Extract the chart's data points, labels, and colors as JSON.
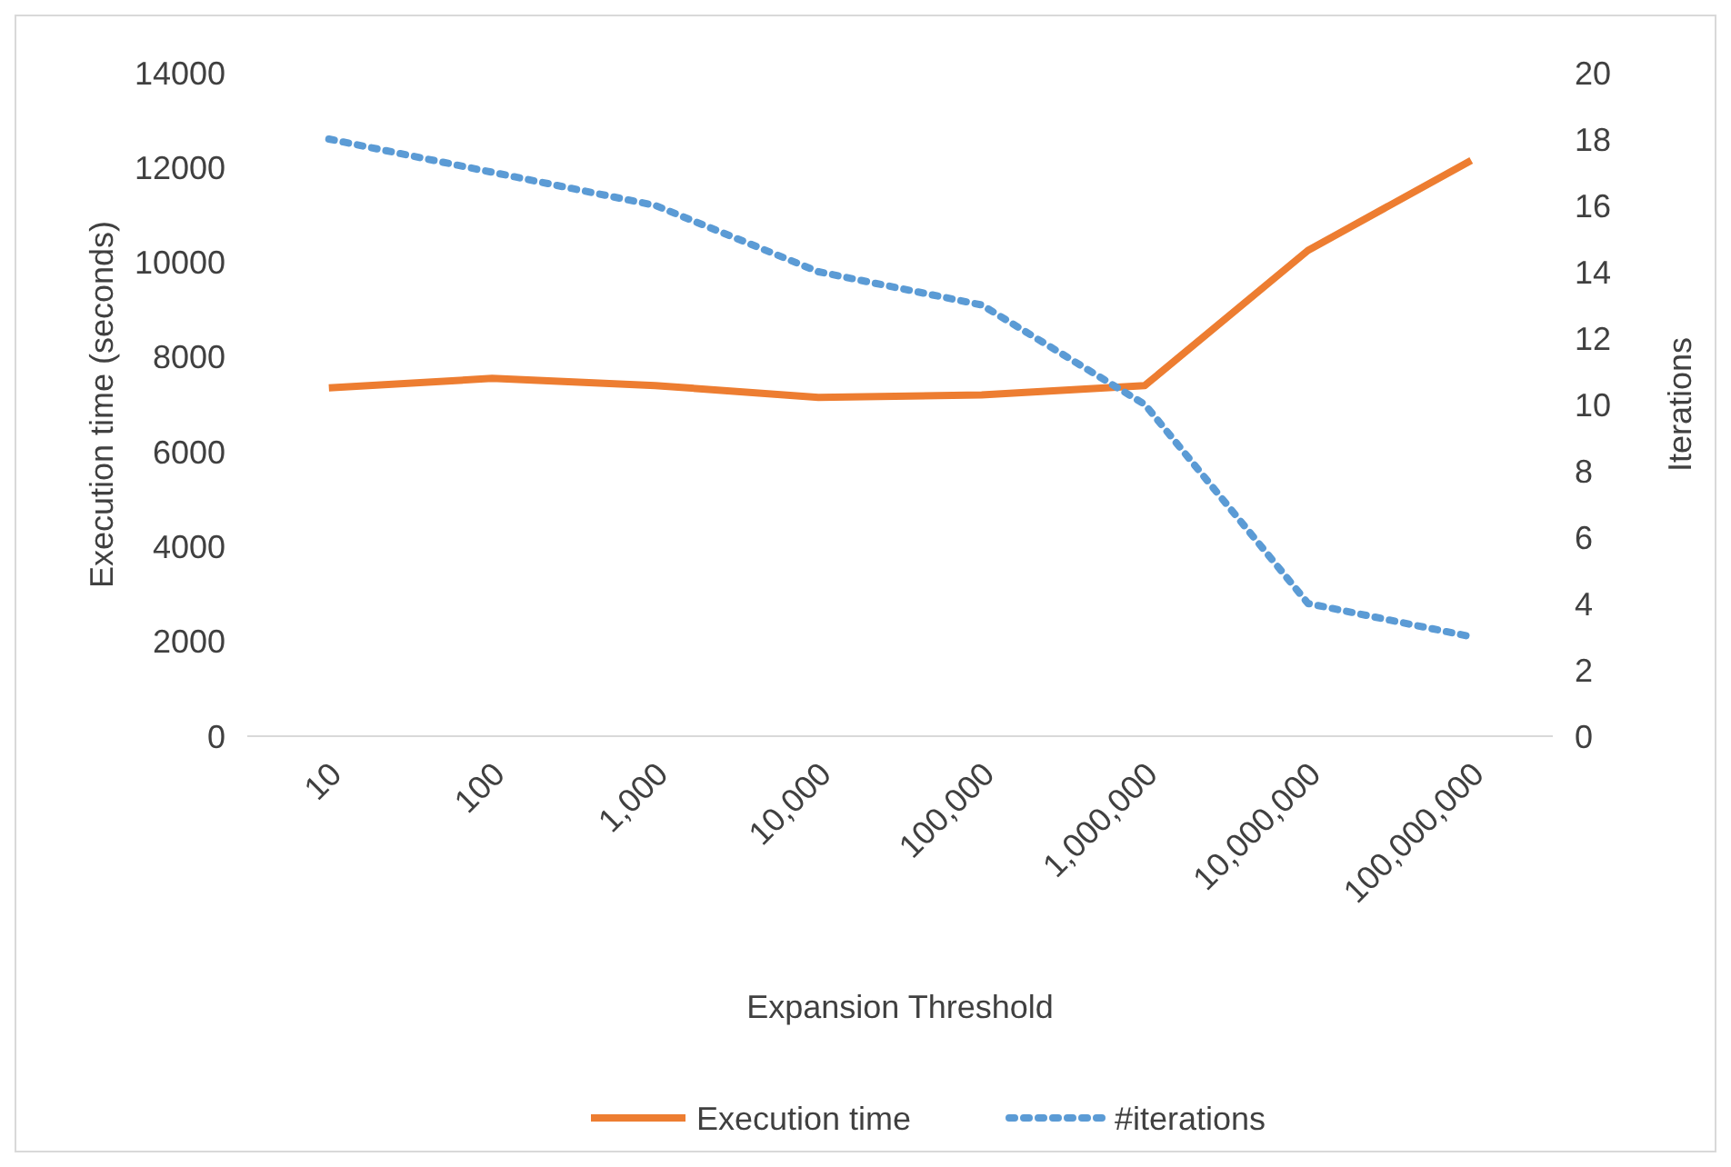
{
  "chart_data": {
    "type": "line",
    "xlabel": "Expansion Threshold",
    "ylabel": "Execution time (seconds)",
    "y2label": "Iterations",
    "categories": [
      "10",
      "100",
      "1,000",
      "10,000",
      "100,000",
      "1,000,000",
      "10,000,000",
      "100,000,000"
    ],
    "ylim": [
      0,
      14000
    ],
    "yticks": [
      0,
      2000,
      4000,
      6000,
      8000,
      10000,
      12000,
      14000
    ],
    "y2lim": [
      0,
      20
    ],
    "y2ticks": [
      0,
      2,
      4,
      6,
      8,
      10,
      12,
      14,
      16,
      18,
      20
    ],
    "series": [
      {
        "name": "Execution time",
        "color": "#ed7d31",
        "line_style": "solid",
        "values": [
          7350,
          7550,
          7400,
          7150,
          7200,
          7400,
          10250,
          12150
        ]
      },
      {
        "name": "#iterations",
        "color": "#5b9bd5",
        "line_style": "dotted",
        "axis": "y2",
        "values": [
          18,
          17,
          16,
          14,
          13,
          10,
          4,
          3
        ]
      }
    ],
    "legend": "bottom",
    "grid": false
  }
}
